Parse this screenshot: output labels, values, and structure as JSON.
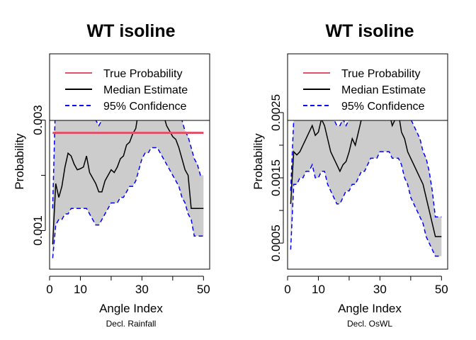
{
  "chart_data": [
    {
      "type": "line",
      "title": "WT isoline",
      "xlabel": "Angle Index",
      "ylabel": "Probability",
      "subtitle": "Decl. Rainfall",
      "xlim": [
        0,
        52
      ],
      "ylim": [
        0.0003,
        0.0042
      ],
      "xticks": [
        0,
        10,
        30,
        50
      ],
      "xtick_labels": [
        "0",
        "10",
        "30",
        "50"
      ],
      "xticks_unlabeled": [
        20,
        40
      ],
      "yticks": [
        0.001,
        0.002,
        0.003
      ],
      "ytick_labels": [
        "0.001",
        "",
        "0.003"
      ],
      "legend": {
        "position": "top",
        "entries": [
          {
            "label": "True Probability",
            "color": "#DF536B",
            "style": "solid"
          },
          {
            "label": "Median Estimate",
            "color": "#000000",
            "style": "solid"
          },
          {
            "label": "95% Confidence",
            "color": "#0000FF",
            "style": "dashed"
          }
        ]
      },
      "true_probability": 0.00277,
      "x": [
        1,
        2,
        3,
        4,
        5,
        6,
        7,
        8,
        9,
        10,
        11,
        12,
        13,
        14,
        15,
        16,
        17,
        18,
        19,
        20,
        21,
        22,
        23,
        24,
        25,
        26,
        27,
        28,
        29,
        30,
        31,
        32,
        33,
        34,
        35,
        36,
        37,
        38,
        39,
        40,
        41,
        42,
        43,
        44,
        45,
        46,
        47,
        48,
        49,
        50
      ],
      "series": [
        {
          "name": "Median Estimate",
          "color": "#000000",
          "values": [
            0.00075,
            0.00185,
            0.0016,
            0.0018,
            0.00215,
            0.0024,
            0.00235,
            0.0022,
            0.0021,
            0.00212,
            0.00215,
            0.00235,
            0.00205,
            0.00195,
            0.00185,
            0.0017,
            0.0017,
            0.0019,
            0.002,
            0.0021,
            0.00205,
            0.00215,
            0.0023,
            0.00235,
            0.00255,
            0.0026,
            0.00275,
            0.00285,
            0.0032,
            0.0035,
            0.0036,
            0.0037,
            0.0037,
            0.0036,
            0.0035,
            0.0033,
            0.0031,
            0.0029,
            0.0028,
            0.0027,
            0.00265,
            0.0025,
            0.0023,
            0.0021,
            0.002,
            0.0014,
            0.0014,
            0.0014,
            0.0014,
            0.0014
          ]
        },
        {
          "name": "95% Confidence (upper)",
          "color": "#0000FF",
          "values": [
            0.0014,
            0.0035,
            0.0033,
            0.0034,
            0.0036,
            0.0036,
            0.0035,
            0.0034,
            0.0032,
            0.0034,
            0.0035,
            0.0034,
            0.0032,
            0.0031,
            0.003,
            0.0029,
            0.003,
            0.0032,
            0.0034,
            0.0033,
            0.0034,
            0.0035,
            0.0036,
            0.0037,
            0.0038,
            0.0038,
            0.0039,
            0.0039,
            0.004,
            0.004,
            0.0041,
            0.0041,
            0.0041,
            0.004,
            0.0039,
            0.0038,
            0.0036,
            0.0035,
            0.0034,
            0.0034,
            0.0032,
            0.0031,
            0.003,
            0.0028,
            0.0027,
            0.0025,
            0.0023,
            0.0022,
            0.002,
            0.002
          ]
        },
        {
          "name": "95% Confidence (lower)",
          "color": "#0000FF",
          "values": [
            0.0005,
            0.0011,
            0.0012,
            0.0012,
            0.0013,
            0.0013,
            0.0014,
            0.0014,
            0.0014,
            0.0014,
            0.0014,
            0.0014,
            0.0013,
            0.0012,
            0.0011,
            0.0011,
            0.0012,
            0.0013,
            0.0014,
            0.0015,
            0.0015,
            0.0015,
            0.0016,
            0.0016,
            0.0017,
            0.0018,
            0.0018,
            0.0019,
            0.0021,
            0.0023,
            0.0024,
            0.0024,
            0.0025,
            0.0025,
            0.0025,
            0.0024,
            0.0023,
            0.0022,
            0.0021,
            0.002,
            0.0019,
            0.0018,
            0.0016,
            0.0015,
            0.0013,
            0.0012,
            0.0009,
            0.0009,
            0.0009,
            0.0009
          ]
        }
      ]
    },
    {
      "type": "line",
      "title": "WT isoline",
      "xlabel": "Angle Index",
      "ylabel": "Probability",
      "subtitle": "Decl. OsWL",
      "xlim": [
        0,
        52
      ],
      "ylim": [
        0.0001,
        0.0034
      ],
      "xticks": [
        0,
        10,
        30,
        50
      ],
      "xtick_labels": [
        "0",
        "10",
        "30",
        "50"
      ],
      "xticks_unlabeled": [
        20,
        40
      ],
      "yticks": [
        0.0005,
        0.001,
        0.0015,
        0.002,
        0.0025
      ],
      "ytick_labels": [
        "0.0005",
        "",
        "0.0015",
        "",
        "0.0025"
      ],
      "legend": {
        "position": "top",
        "entries": [
          {
            "label": "True Probability",
            "color": "#DF536B",
            "style": "solid"
          },
          {
            "label": "Median Estimate",
            "color": "#000000",
            "style": "solid"
          },
          {
            "label": "95% Confidence",
            "color": "#0000FF",
            "style": "dashed"
          }
        ]
      },
      "x": [
        1,
        2,
        3,
        4,
        5,
        6,
        7,
        8,
        9,
        10,
        11,
        12,
        13,
        14,
        15,
        16,
        17,
        18,
        19,
        20,
        21,
        22,
        23,
        24,
        25,
        26,
        27,
        28,
        29,
        30,
        31,
        32,
        33,
        34,
        35,
        36,
        37,
        38,
        39,
        40,
        41,
        42,
        43,
        44,
        45,
        46,
        47,
        48,
        49,
        50
      ],
      "series": [
        {
          "name": "Median Estimate",
          "color": "#000000",
          "values": [
            0.0011,
            0.0019,
            0.00185,
            0.0019,
            0.002,
            0.0021,
            0.0022,
            0.0023,
            0.00215,
            0.0022,
            0.0024,
            0.0023,
            0.0021,
            0.0019,
            0.0018,
            0.0017,
            0.0016,
            0.0017,
            0.00175,
            0.0019,
            0.0021,
            0.002,
            0.0022,
            0.0024,
            0.0025,
            0.0026,
            0.0027,
            0.0028,
            0.0027,
            0.0029,
            0.0029,
            0.0028,
            0.0025,
            0.0023,
            0.0024,
            0.0025,
            0.0022,
            0.0021,
            0.0019,
            0.0018,
            0.0017,
            0.0016,
            0.0015,
            0.0014,
            0.0012,
            0.001,
            0.0008,
            0.0006,
            0.0006,
            0.0006
          ]
        },
        {
          "name": "95% Confidence (upper)",
          "color": "#0000FF",
          "values": [
            0.0013,
            0.0024,
            0.0025,
            0.0025,
            0.0026,
            0.0027,
            0.0027,
            0.0026,
            0.0027,
            0.0026,
            0.0026,
            0.0027,
            0.0026,
            0.0025,
            0.0024,
            0.0023,
            0.0023,
            0.0024,
            0.0023,
            0.0024,
            0.0025,
            0.0026,
            0.0026,
            0.0027,
            0.0028,
            0.0029,
            0.0029,
            0.0029,
            0.0029,
            0.003,
            0.003,
            0.0029,
            0.0029,
            0.0028,
            0.0028,
            0.0028,
            0.0027,
            0.0026,
            0.0025,
            0.0024,
            0.0023,
            0.0022,
            0.0021,
            0.0019,
            0.0018,
            0.0016,
            0.0013,
            0.0009,
            0.0009,
            0.0009
          ]
        },
        {
          "name": "95% Confidence (lower)",
          "color": "#0000FF",
          "values": [
            0.0004,
            0.0014,
            0.0014,
            0.0015,
            0.0015,
            0.0016,
            0.0016,
            0.0017,
            0.0015,
            0.0015,
            0.0016,
            0.0016,
            0.0014,
            0.0013,
            0.0012,
            0.0011,
            0.0011,
            0.0012,
            0.0013,
            0.0013,
            0.0014,
            0.0014,
            0.0015,
            0.0016,
            0.0016,
            0.0017,
            0.0018,
            0.0018,
            0.0018,
            0.0019,
            0.0019,
            0.0019,
            0.0019,
            0.0018,
            0.0018,
            0.0018,
            0.0017,
            0.0015,
            0.0014,
            0.0012,
            0.0011,
            0.001,
            0.0009,
            0.0008,
            0.0006,
            0.0005,
            0.0004,
            0.0003,
            0.0003,
            0.0003
          ]
        }
      ]
    }
  ]
}
